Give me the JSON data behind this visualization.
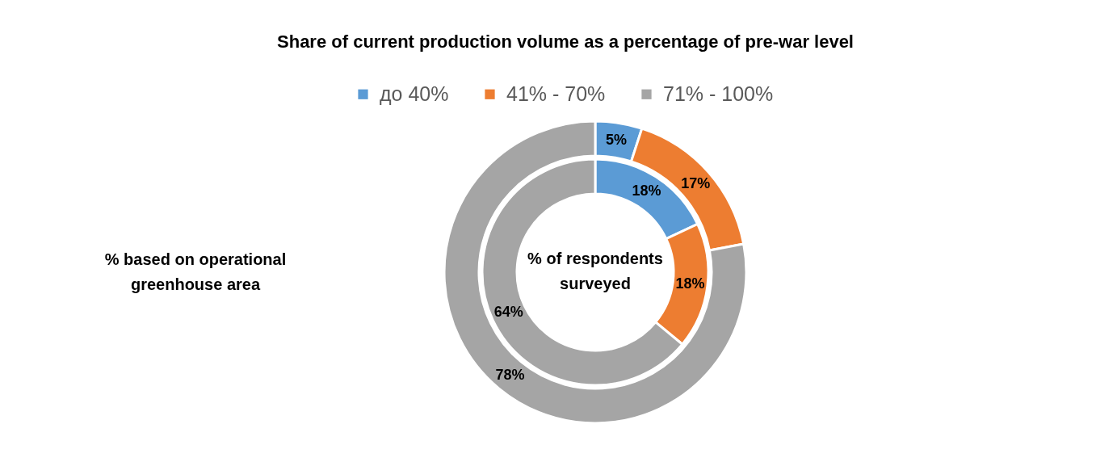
{
  "chart_data": {
    "type": "donut",
    "title": "Share of current production volume as a percentage of pre-war level",
    "categories": [
      "до 40%",
      "41% - 70%",
      "71% - 100%"
    ],
    "colors": [
      "#5b9bd5",
      "#ed7d31",
      "#a5a5a5"
    ],
    "series": [
      {
        "name": "% of respondents surveyed",
        "values": [
          18,
          18,
          64
        ],
        "value_labels": [
          "18%",
          "18%",
          "64%"
        ]
      },
      {
        "name": "% based on operational greenhouse area",
        "values": [
          5,
          17,
          78
        ],
        "value_labels": [
          "5%",
          "17%",
          "78%"
        ]
      }
    ],
    "legend": "top"
  }
}
